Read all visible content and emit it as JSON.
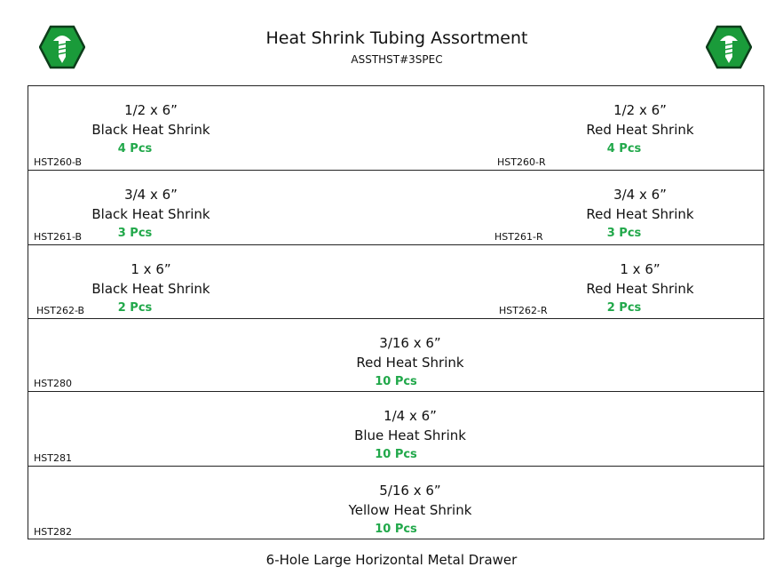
{
  "header": {
    "title": "Heat Shrink Tubing Assortment",
    "subtitle": "ASSTHST#3SPEC",
    "logo_color": "#1a9b3a"
  },
  "rows": [
    {
      "cells": [
        {
          "size": "1/2 x 6”",
          "name": "Black Heat Shrink",
          "qty": "4 Pcs",
          "code": "HST260-B"
        },
        {
          "size": "1/2 x 6”",
          "name": "Red Heat Shrink",
          "qty": "4 Pcs",
          "code": "HST260-R"
        }
      ]
    },
    {
      "cells": [
        {
          "size": "3/4 x 6”",
          "name": "Black Heat Shrink",
          "qty": "3 Pcs",
          "code": "HST261-B"
        },
        {
          "size": "3/4 x 6”",
          "name": "Red Heat Shrink",
          "qty": "3 Pcs",
          "code": "HST261-R"
        }
      ]
    },
    {
      "cells": [
        {
          "size": "1 x 6”",
          "name": "Black Heat Shrink",
          "qty": "2 Pcs",
          "code": "HST262-B"
        },
        {
          "size": "1 x 6”",
          "name": "Red Heat Shrink",
          "qty": "2 Pcs",
          "code": "HST262-R"
        }
      ]
    },
    {
      "cells": [
        {
          "size": "3/16 x 6”",
          "name": "Red Heat Shrink",
          "qty": "10 Pcs",
          "code": "HST280"
        }
      ]
    },
    {
      "cells": [
        {
          "size": "1/4 x 6”",
          "name": "Blue Heat Shrink",
          "qty": "10 Pcs",
          "code": "HST281"
        }
      ]
    },
    {
      "cells": [
        {
          "size": "5/16 x 6”",
          "name": "Yellow Heat Shrink",
          "qty": "10 Pcs",
          "code": "HST282"
        }
      ]
    }
  ],
  "footer": "6-Hole Large Horizontal Metal Drawer"
}
